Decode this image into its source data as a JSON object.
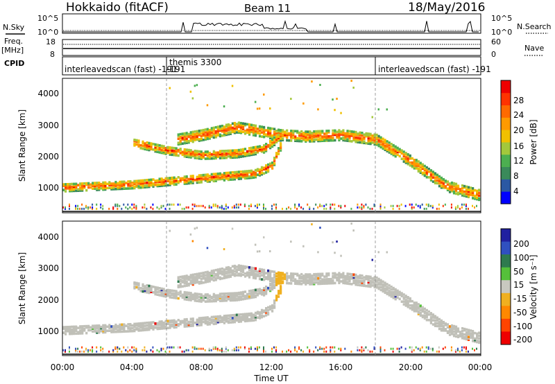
{
  "header": {
    "station": "Hokkaido (fitACF)",
    "beam": "Beam 11",
    "date": "18/May/2016"
  },
  "left_labels": {
    "nsky": "N.Sky",
    "freq": "Freq.",
    "freq_unit": "[MHz]",
    "cpid": "CPID"
  },
  "right_labels": {
    "nsearch": "N.Search",
    "nave": "Nave"
  },
  "nsky_ticks": [
    "10^5",
    "10^0"
  ],
  "nsearch_ticks": [
    "10^5",
    "10^0"
  ],
  "freq_ticks": [
    "18",
    "8"
  ],
  "nave_ticks": [
    "60",
    "0"
  ],
  "cpid_segments": [
    {
      "label": "interleavedscan (fast) -191",
      "start_hour": 0
    },
    {
      "label": "themis 3300",
      "start_hour": 6
    },
    {
      "label": "-191",
      "start_hour": 6
    },
    {
      "label": "interleavedscan (fast) -191",
      "start_hour": 18
    }
  ],
  "colors": {
    "power_scale": [
      "#0000ff",
      "#2b58a3",
      "#3a8a5a",
      "#4caf50",
      "#a3c83c",
      "#f0c000",
      "#ff9a00",
      "#ff6a00",
      "#ff3300",
      "#ee0000"
    ],
    "velocity_scale": [
      "#2020a0",
      "#3050c0",
      "#2e7a4e",
      "#55c03a",
      "#c8c8c0",
      "#f0b020",
      "#ff8800",
      "#ff4400",
      "#ee0000"
    ],
    "ground_scatter": "#c0c0b8"
  },
  "chart_data": [
    {
      "type": "heatmap",
      "panel": "power",
      "ylabel": "Slant Range [km]",
      "xlabel": "Time UT",
      "xlim_hours": [
        0,
        24
      ],
      "ylim": [
        200,
        4500
      ],
      "y_ticks": [
        "1000",
        "2000",
        "3000",
        "4000"
      ],
      "x_ticks": [
        "00:00",
        "04:00",
        "08:00",
        "12:00",
        "16:00",
        "20:00",
        "00:00"
      ],
      "colorbar": {
        "label": "Power [dB]",
        "ticks": [
          "28",
          "24",
          "20",
          "16",
          "12",
          "8",
          "4"
        ],
        "range": [
          0,
          30
        ]
      },
      "bands": [
        {
          "name": "lower",
          "points": [
            [
              0,
              950
            ],
            [
              2,
              1000
            ],
            [
              4,
              1050
            ],
            [
              6,
              1150
            ],
            [
              8,
              1250
            ],
            [
              10,
              1350
            ],
            [
              11,
              1400
            ],
            [
              12,
              1650
            ],
            [
              12.5,
              2300
            ]
          ]
        },
        {
          "name": "middle",
          "points": [
            [
              4,
              2400
            ],
            [
              6,
              2150
            ],
            [
              8,
              2000
            ],
            [
              10,
              2050
            ],
            [
              11.5,
              2200
            ],
            [
              12.5,
              2600
            ]
          ]
        },
        {
          "name": "upper",
          "points": [
            [
              6.5,
              2500
            ],
            [
              8,
              2650
            ],
            [
              10,
              2900
            ],
            [
              12,
              2700
            ],
            [
              12.5,
              2650
            ],
            [
              14,
              2600
            ],
            [
              16,
              2650
            ],
            [
              18,
              2500
            ],
            [
              20,
              1800
            ],
            [
              22,
              1000
            ],
            [
              24,
              700
            ]
          ]
        }
      ]
    },
    {
      "type": "heatmap",
      "panel": "velocity",
      "ylabel": "Slant Range [km]",
      "xlabel": "Time UT",
      "xlim_hours": [
        0,
        24
      ],
      "ylim": [
        200,
        4500
      ],
      "y_ticks": [
        "1000",
        "2000",
        "3000",
        "4000"
      ],
      "x_ticks": [
        "00:00",
        "04:00",
        "08:00",
        "12:00",
        "16:00",
        "20:00",
        "00:00"
      ],
      "colorbar": {
        "label": "Velocity [m s⁻¹]",
        "ticks": [
          "200",
          "100",
          "50",
          "15",
          "-15",
          "-50",
          "-100",
          "-200"
        ]
      },
      "dominant_value": "ground scatter (-15 to 15)"
    }
  ]
}
